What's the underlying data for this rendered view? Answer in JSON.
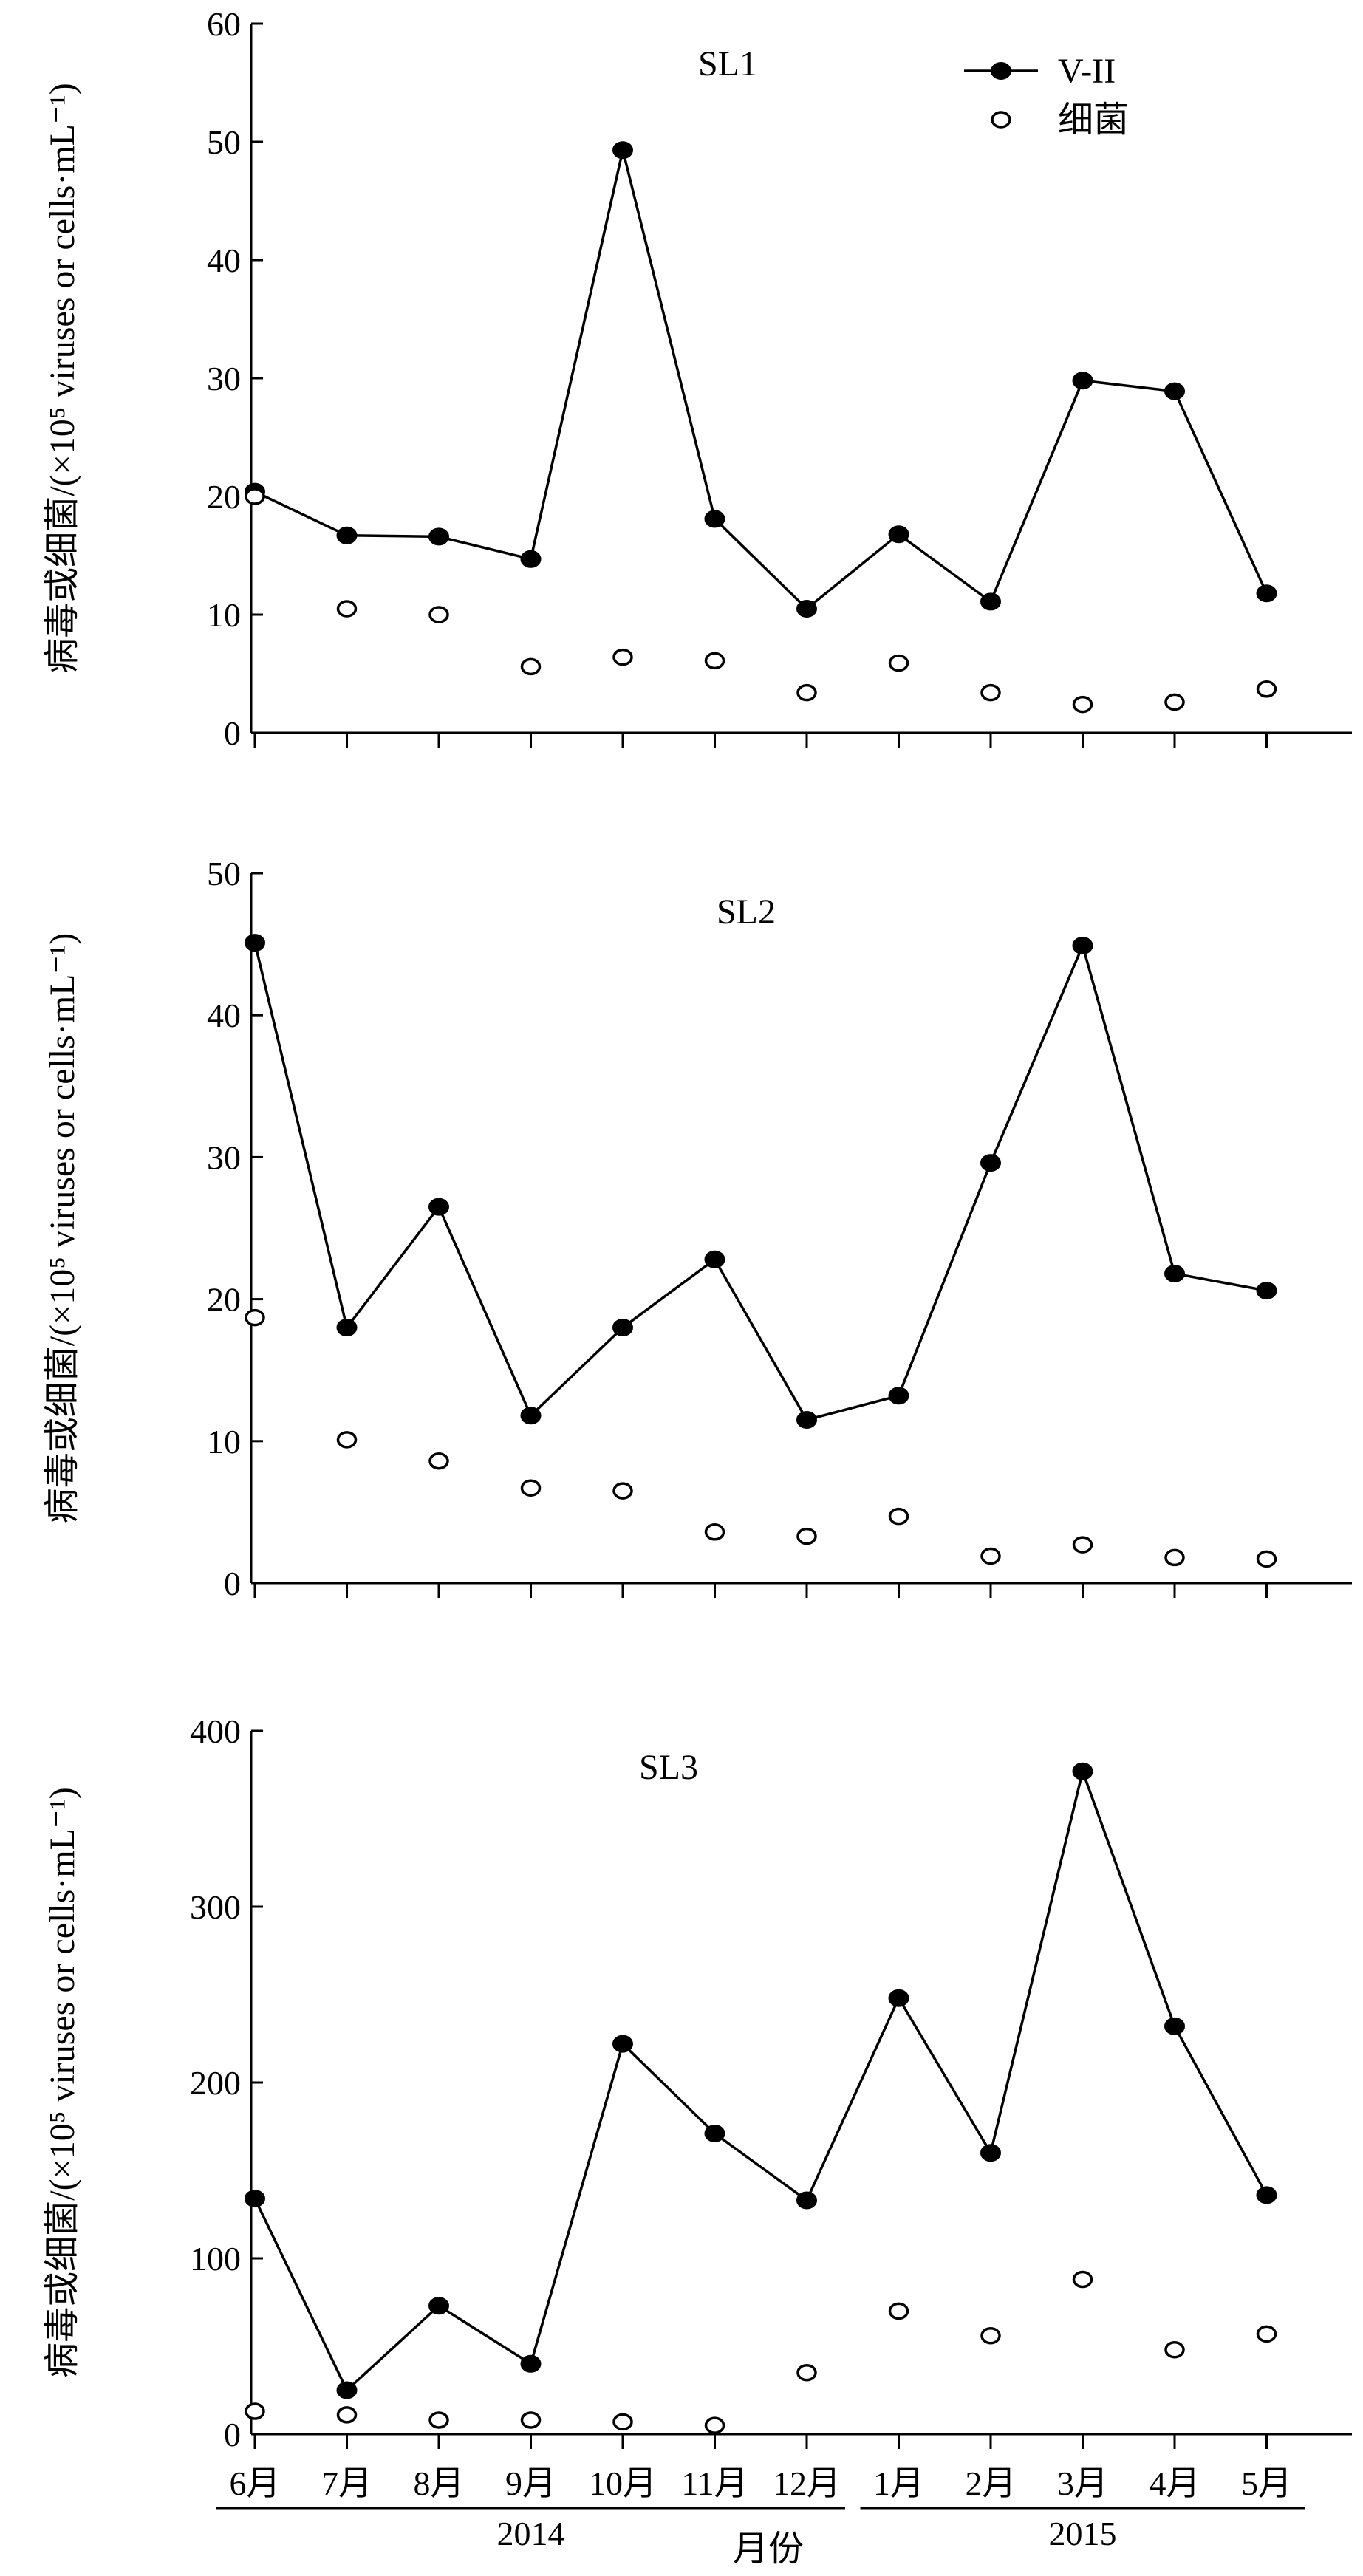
{
  "chart_data": [
    {
      "type": "line",
      "title": "SL1",
      "ylabel": "病毒或细菌/(×10⁵ viruses or cells·mL⁻¹)",
      "ylim": [
        0,
        60
      ],
      "yticks": [
        0,
        10,
        20,
        30,
        40,
        50,
        60
      ],
      "grid": false,
      "legend": "top-right",
      "categories": [
        "6月",
        "7月",
        "8月",
        "9月",
        "10月",
        "11月",
        "12月",
        "1月",
        "2月",
        "3月",
        "4月",
        "5月"
      ],
      "series": [
        {
          "name": "V-II",
          "style": "filled-marker-line",
          "values": [
            20.4,
            16.7,
            16.6,
            14.7,
            49.3,
            18.1,
            10.5,
            16.8,
            11.1,
            29.8,
            28.9,
            11.8
          ]
        },
        {
          "name": "细菌",
          "style": "open-marker",
          "values": [
            20.0,
            10.5,
            10.0,
            5.6,
            6.4,
            6.1,
            3.4,
            5.9,
            3.4,
            2.4,
            2.6,
            3.7
          ]
        }
      ]
    },
    {
      "type": "line",
      "title": "SL2",
      "ylabel": "病毒或细菌/(×10⁵ viruses or cells·mL⁻¹)",
      "ylim": [
        0,
        50
      ],
      "yticks": [
        0,
        10,
        20,
        30,
        40,
        50
      ],
      "grid": false,
      "categories": [
        "6月",
        "7月",
        "8月",
        "9月",
        "10月",
        "11月",
        "12月",
        "1月",
        "2月",
        "3月",
        "4月",
        "5月"
      ],
      "series": [
        {
          "name": "V-II",
          "style": "filled-marker-line",
          "values": [
            45.1,
            18.0,
            26.5,
            11.8,
            18.0,
            22.8,
            11.5,
            13.2,
            29.6,
            44.9,
            21.8,
            20.6
          ]
        },
        {
          "name": "细菌",
          "style": "open-marker",
          "values": [
            18.7,
            10.1,
            8.6,
            6.7,
            6.5,
            3.6,
            3.3,
            4.7,
            1.9,
            2.7,
            1.8,
            1.7
          ]
        }
      ]
    },
    {
      "type": "line",
      "title": "SL3",
      "ylabel": "病毒或细菌/(×10⁵ viruses or cells·mL⁻¹)",
      "ylim": [
        0,
        400
      ],
      "yticks": [
        0,
        100,
        200,
        300,
        400
      ],
      "grid": false,
      "xlabel": "月份",
      "year_groups": [
        {
          "label": "2014",
          "from": 0,
          "to": 6
        },
        {
          "label": "2015",
          "from": 7,
          "to": 11
        }
      ],
      "categories": [
        "6月",
        "7月",
        "8月",
        "9月",
        "10月",
        "11月",
        "12月",
        "1月",
        "2月",
        "3月",
        "4月",
        "5月"
      ],
      "series": [
        {
          "name": "V-II",
          "style": "filled-marker-line",
          "values": [
            134,
            25,
            73,
            40,
            222,
            171,
            133,
            248,
            160,
            377,
            232,
            136
          ]
        },
        {
          "name": "细菌",
          "style": "open-marker",
          "values": [
            13,
            11,
            8,
            8,
            7,
            5,
            35,
            70,
            56,
            88,
            48,
            57
          ]
        }
      ]
    }
  ]
}
